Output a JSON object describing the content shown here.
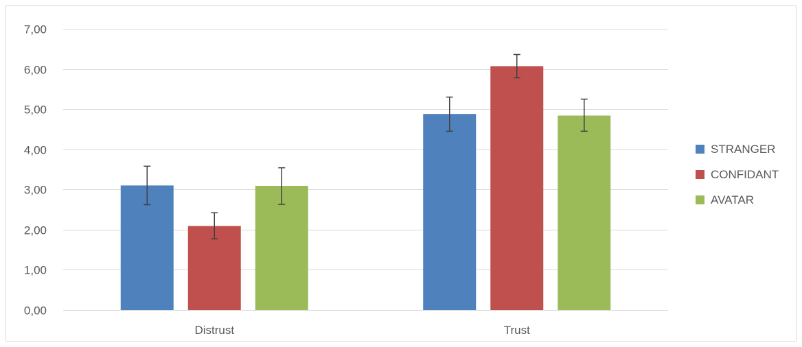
{
  "chart_data": {
    "type": "bar",
    "categories": [
      "Distrust",
      "Trust"
    ],
    "series": [
      {
        "name": "STRANGER",
        "color": "#4f81bd",
        "values": [
          3.1,
          4.88
        ],
        "error_low": [
          2.62,
          4.45
        ],
        "error_high": [
          3.58,
          5.3
        ]
      },
      {
        "name": "CONFIDANT",
        "color": "#c0504d",
        "values": [
          2.09,
          6.07
        ],
        "error_low": [
          1.77,
          5.78
        ],
        "error_high": [
          2.42,
          6.36
        ]
      },
      {
        "name": "AVATAR",
        "color": "#9bbb59",
        "values": [
          3.09,
          4.84
        ],
        "error_low": [
          2.63,
          4.45
        ],
        "error_high": [
          3.54,
          5.25
        ]
      }
    ],
    "ylim": [
      0,
      7
    ],
    "yticks": [
      0,
      1,
      2,
      3,
      4,
      5,
      6,
      7
    ],
    "ytick_labels": [
      "0,00",
      "1,00",
      "2,00",
      "3,00",
      "4,00",
      "5,00",
      "6,00",
      "7,00"
    ],
    "grid": true,
    "legend_position": "right",
    "title": "",
    "xlabel": "",
    "ylabel": ""
  }
}
